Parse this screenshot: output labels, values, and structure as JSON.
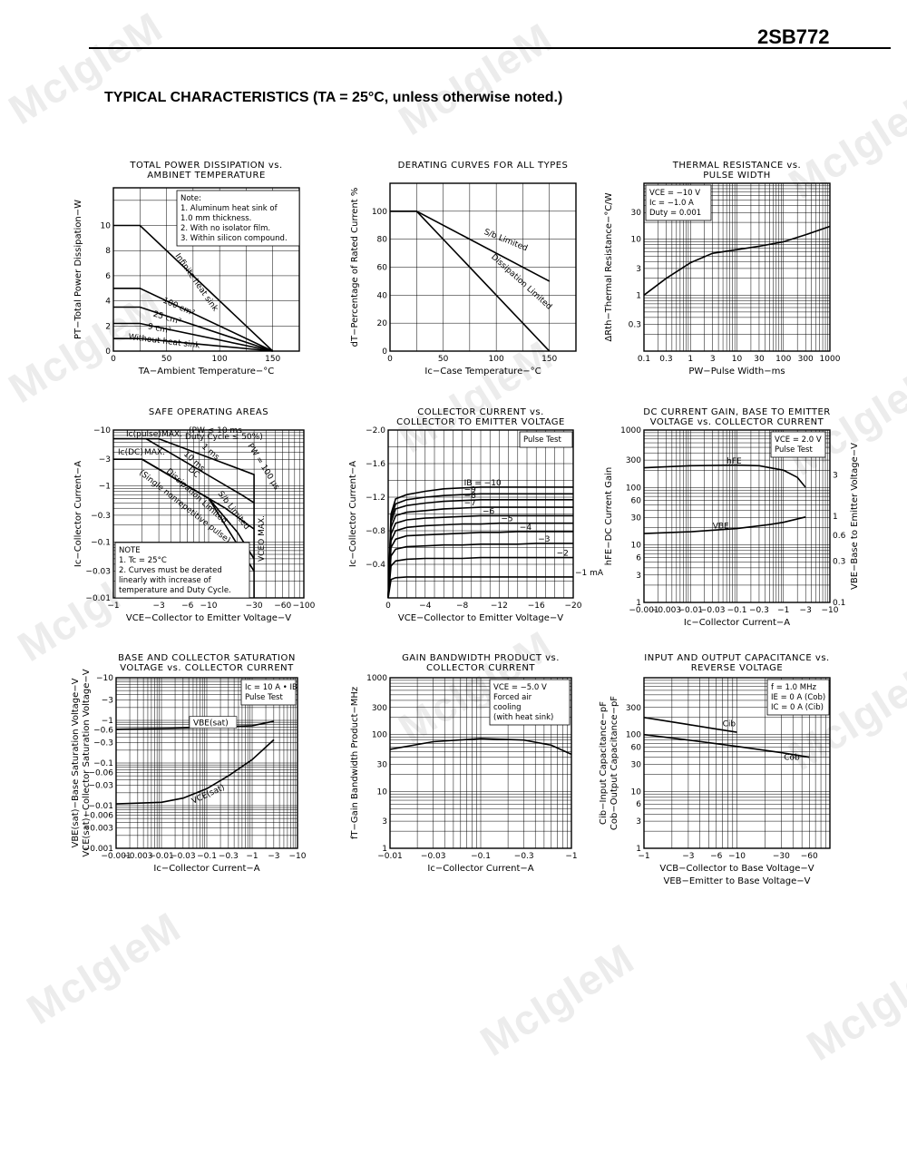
{
  "header": {
    "part_number": "2SB772",
    "section_title": "TYPICAL  CHARACTERISTICS (TA = 25°C, unless otherwise noted.)"
  },
  "watermark": "McIgIeM",
  "chart_data": [
    {
      "id": "c1",
      "type": "line",
      "title": [
        "TOTAL POWER DISSIPATION vs.",
        "AMBINET TEMPERATURE"
      ],
      "xlabel": "TA−Ambient  Temperature−°C",
      "ylabel": "PT−Total Power Dissipation−W",
      "xscale": "linear",
      "yscale": "linear",
      "xlim": [
        0,
        175
      ],
      "ylim": [
        0,
        13
      ],
      "xticks": [
        0,
        50,
        100,
        150
      ],
      "xtick_labels": [
        "0",
        "50",
        "100",
        "150"
      ],
      "yticks": [
        0,
        2,
        4,
        6,
        8,
        10
      ],
      "ytick_labels": [
        "0",
        "2",
        "4",
        "6",
        "8",
        "10"
      ],
      "x_grid": [
        0,
        25,
        50,
        75,
        100,
        125,
        150,
        175
      ],
      "y_grid": [
        0,
        2,
        4,
        6,
        8,
        10,
        12
      ],
      "series": [
        {
          "name": "Infinite heat sink",
          "x": [
            0,
            25,
            150
          ],
          "y": [
            10,
            10,
            0
          ]
        },
        {
          "name": "100 cm²",
          "x": [
            0,
            25,
            150
          ],
          "y": [
            5,
            5,
            0
          ]
        },
        {
          "name": "25 cm²",
          "x": [
            0,
            25,
            150
          ],
          "y": [
            3.5,
            3.5,
            0
          ]
        },
        {
          "name": "9 cm²",
          "x": [
            0,
            25,
            150
          ],
          "y": [
            2.2,
            2.2,
            0
          ]
        },
        {
          "name": "Without heat sink",
          "x": [
            0,
            25,
            150
          ],
          "y": [
            1,
            1,
            0
          ]
        }
      ],
      "notes": [
        "Note:",
        "1. Aluminum heat sink of",
        "    1.0 mm thickness.",
        "2. With no isolator film.",
        "3. Within silicon compound."
      ],
      "legend": "top-right"
    },
    {
      "id": "c2",
      "type": "line",
      "title": [
        "DERATING CURVES FOR ALL TYPES"
      ],
      "xlabel": "Ic−Case Temperature−°C",
      "ylabel": "dT−Percentage of Rated Current  %",
      "xscale": "linear",
      "yscale": "linear",
      "xlim": [
        0,
        175
      ],
      "ylim": [
        0,
        120
      ],
      "xticks": [
        0,
        50,
        100,
        150
      ],
      "xtick_labels": [
        "0",
        "50",
        "100",
        "150"
      ],
      "yticks": [
        0,
        20,
        40,
        60,
        80,
        100
      ],
      "ytick_labels": [
        "0",
        "20",
        "40",
        "60",
        "80",
        "100"
      ],
      "x_grid": [
        0,
        25,
        50,
        75,
        100,
        125,
        150,
        175
      ],
      "y_grid": [
        0,
        20,
        40,
        60,
        80,
        100,
        120
      ],
      "series": [
        {
          "name": "S/b Limited",
          "x": [
            0,
            25,
            150
          ],
          "y": [
            100,
            100,
            50
          ]
        },
        {
          "name": "Dissipation Limited",
          "x": [
            0,
            25,
            150
          ],
          "y": [
            100,
            100,
            0
          ]
        }
      ]
    },
    {
      "id": "c3",
      "type": "line",
      "title": [
        "THERMAL RESISTANCE vs.",
        "PULSE WIDTH"
      ],
      "xlabel": "PW−Pulse Width−ms",
      "ylabel": "ΔRth−Thermal Resistance−°C/W",
      "xscale": "log",
      "yscale": "log",
      "xlim": [
        0.1,
        1000
      ],
      "ylim": [
        0.1,
        100
      ],
      "xticks": [
        0.1,
        0.3,
        1,
        3,
        10,
        30,
        100,
        300,
        1000
      ],
      "xtick_labels": [
        "0.1",
        "0.3",
        "1",
        "3",
        "10",
        "30",
        "100",
        "300",
        "1000"
      ],
      "yticks": [
        0.3,
        1,
        3,
        10,
        30
      ],
      "ytick_labels": [
        "0.3",
        "1",
        "3",
        "10",
        "30"
      ],
      "series": [
        {
          "name": "ΔRth",
          "x": [
            0.1,
            0.3,
            1,
            3,
            10,
            30,
            100,
            300,
            1000
          ],
          "y": [
            1.0,
            2.0,
            3.8,
            5.6,
            6.5,
            7.5,
            9.0,
            12.0,
            17.0
          ]
        }
      ],
      "notes": [
        "VCE = −10 V",
        "Ic = −1.0 A",
        "Duty = 0.001"
      ]
    },
    {
      "id": "c4",
      "type": "line",
      "title": [
        "SAFE OPERATING AREAS"
      ],
      "xlabel": "VCE−Collector to Emitter Voltage−V",
      "ylabel": "Ic−Collector Current−A",
      "xscale": "log",
      "yscale": "log",
      "xlim": [
        1,
        100
      ],
      "ylim": [
        0.01,
        10
      ],
      "xticks": [
        1,
        3,
        6,
        10,
        30,
        60,
        100
      ],
      "xtick_labels": [
        "−1",
        "−3",
        "−6",
        "−10",
        "−30",
        "−60",
        "−100"
      ],
      "yticks": [
        0.01,
        0.03,
        0.1,
        0.3,
        1,
        3,
        10
      ],
      "ytick_labels": [
        "−0.01",
        "−0.03",
        "−0.1",
        "−0.3",
        "−1",
        "−3",
        "−10"
      ],
      "series": [
        {
          "name": "Ic(pulse) MAX.",
          "x": [
            1,
            3
          ],
          "y": [
            7,
            7
          ]
        },
        {
          "name": "Ic(DC) MAX.",
          "x": [
            1,
            2
          ],
          "y": [
            3,
            3
          ]
        },
        {
          "name": "PW = 100 μs",
          "x": [
            3,
            30,
            30
          ],
          "y": [
            7,
            1.6,
            0.01
          ]
        },
        {
          "name": "1 ms",
          "x": [
            2.2,
            22,
            30
          ],
          "y": [
            7,
            0.7,
            0.5
          ]
        },
        {
          "name": "10 ms",
          "x": [
            2.0,
            15,
            30
          ],
          "y": [
            3,
            0.4,
            0.17
          ]
        },
        {
          "name": "DC",
          "x": [
            2.0,
            10,
            30
          ],
          "y": [
            3,
            0.6,
            0.03
          ]
        },
        {
          "name": "Dissipation Limited / S/b Limited",
          "x": [
            2.0,
            10,
            20,
            30
          ],
          "y": [
            3,
            0.6,
            0.15,
            0.05
          ]
        }
      ],
      "annotations": [
        "Ic(pulse)",
        "MAX.",
        "(PW ≤ 10 ms",
        "Duty Cycle ≤ 50%)",
        "Ic(DC)",
        "MAX.",
        "1 ms",
        "10 ms",
        "DC",
        "Dissipation Limited",
        "S/b Limited",
        "(Single nonrepetitive pulse)",
        "PW = 100 μs",
        "VCEO MAX."
      ],
      "notes": [
        "NOTE",
        "1. Tc = 25°C",
        "2. Curves must be derated",
        "    linearly with increase of",
        "    temperature and Duty Cycle."
      ]
    },
    {
      "id": "c5",
      "type": "line",
      "title": [
        "COLLECTOR CURRENT vs.",
        "COLLECTOR TO EMITTER VOLTAGE"
      ],
      "xlabel": "VCE−Collector to Emitter Voltage−V",
      "ylabel": "Ic−Collector Current−A",
      "xscale": "linear",
      "yscale": "linear",
      "xlim": [
        0,
        20
      ],
      "ylim": [
        0,
        2.0
      ],
      "xticks": [
        0,
        4,
        8,
        12,
        16,
        20
      ],
      "xtick_labels": [
        "0",
        "−4",
        "−8",
        "−12",
        "−16",
        "−20"
      ],
      "yticks": [
        0.4,
        0.8,
        1.2,
        1.6,
        2.0
      ],
      "ytick_labels": [
        "−0.4",
        "−0.8",
        "−1.2",
        "−1.6",
        "−2.0"
      ],
      "x_grid": [
        0,
        1,
        2,
        3,
        4,
        5,
        6,
        7,
        8,
        9,
        10,
        11,
        12,
        13,
        14,
        15,
        16,
        17,
        18,
        19,
        20
      ],
      "y_grid": [
        0,
        0.2,
        0.4,
        0.6,
        0.8,
        1.0,
        1.2,
        1.4,
        1.6,
        1.8,
        2.0
      ],
      "series_points_x": [
        0,
        0.3,
        0.8,
        2,
        4,
        6,
        8,
        10,
        12,
        14,
        16,
        18,
        20
      ],
      "series": [
        {
          "name": "−1 mA",
          "y": [
            0,
            0.22,
            0.24,
            0.25,
            0.25,
            0.25,
            0.25,
            0.25,
            0.25,
            0.25,
            0.25,
            0.25,
            0.25
          ]
        },
        {
          "name": "−2",
          "y": [
            0,
            0.38,
            0.44,
            0.46,
            0.47,
            0.47,
            0.47,
            0.48,
            0.48,
            0.48,
            0.48,
            0.48,
            0.48
          ]
        },
        {
          "name": "−3",
          "y": [
            0,
            0.5,
            0.58,
            0.61,
            0.62,
            0.63,
            0.63,
            0.64,
            0.64,
            0.64,
            0.65,
            0.65,
            0.65
          ]
        },
        {
          "name": "−4",
          "y": [
            0,
            0.6,
            0.7,
            0.74,
            0.75,
            0.76,
            0.77,
            0.78,
            0.78,
            0.79,
            0.79,
            0.79,
            0.79
          ]
        },
        {
          "name": "−5",
          "y": [
            0,
            0.68,
            0.8,
            0.84,
            0.86,
            0.87,
            0.88,
            0.88,
            0.89,
            0.89,
            0.89,
            0.89,
            0.89
          ]
        },
        {
          "name": "−6",
          "y": [
            0,
            0.76,
            0.89,
            0.93,
            0.95,
            0.96,
            0.97,
            0.98,
            0.98,
            0.98,
            0.98,
            0.98,
            0.98
          ]
        },
        {
          "name": "−7",
          "y": [
            0,
            0.84,
            0.98,
            1.02,
            1.04,
            1.06,
            1.07,
            1.08,
            1.08,
            1.08,
            1.08,
            1.08,
            1.08
          ]
        },
        {
          "name": "−8",
          "y": [
            0,
            0.9,
            1.06,
            1.1,
            1.13,
            1.15,
            1.16,
            1.17,
            1.17,
            1.17,
            1.17,
            1.17,
            1.17
          ]
        },
        {
          "name": "−9",
          "y": [
            0,
            0.95,
            1.12,
            1.17,
            1.2,
            1.22,
            1.23,
            1.24,
            1.24,
            1.24,
            1.24,
            1.24,
            1.24
          ]
        },
        {
          "name": "IB = −10",
          "y": [
            0,
            1.0,
            1.18,
            1.23,
            1.27,
            1.3,
            1.31,
            1.32,
            1.32,
            1.32,
            1.32,
            1.32,
            1.32
          ]
        }
      ],
      "notes": [
        "Pulse Test"
      ]
    },
    {
      "id": "c6",
      "type": "line",
      "title": [
        "DC CURRENT GAIN, BASE TO EMITTER",
        "VOLTAGE vs. COLLECTOR CURRENT"
      ],
      "xlabel": "Ic−Collector Current−A",
      "ylabel": "hFE−DC Current Gain",
      "y2label": "VBE−Base to Emitter Voltage−V",
      "xscale": "log",
      "yscale": "log",
      "xlim": [
        0.001,
        10
      ],
      "ylim": [
        1,
        1000
      ],
      "y2lim": [
        0.1,
        10
      ],
      "xticks": [
        0.001,
        0.003,
        0.01,
        0.03,
        0.1,
        0.3,
        1,
        3,
        10
      ],
      "xtick_labels": [
        "−0.001",
        "−0.003",
        "−0.01",
        "−0.03",
        "−0.1",
        "−0.3",
        "−1",
        "−3",
        "−10"
      ],
      "yticks": [
        1,
        3,
        6,
        10,
        30,
        60,
        100,
        300,
        1000
      ],
      "ytick_labels": [
        "1",
        "3",
        "6",
        "10",
        "30",
        "60",
        "100",
        "300",
        "1000"
      ],
      "y2ticks": [
        0.1,
        0.3,
        0.6,
        1,
        3
      ],
      "y2tick_labels": [
        "0.1",
        "0.3",
        "0.6",
        "1",
        "3"
      ],
      "series": [
        {
          "name": "hFE",
          "axis": "left",
          "x": [
            0.001,
            0.01,
            0.1,
            0.3,
            1,
            2,
            3
          ],
          "y": [
            220,
            240,
            245,
            240,
            200,
            150,
            100
          ]
        },
        {
          "name": "VBE",
          "axis": "right",
          "x": [
            0.001,
            0.01,
            0.1,
            0.5,
            1,
            3
          ],
          "y": [
            0.63,
            0.66,
            0.72,
            0.8,
            0.85,
            0.98
          ]
        }
      ],
      "notes": [
        "VCE = 2.0 V",
        "Pulse Test"
      ]
    },
    {
      "id": "c7",
      "type": "line",
      "title": [
        "BASE AND COLLECTOR SATURATION",
        "VOLTAGE vs. COLLECTOR CURRENT"
      ],
      "xlabel": "Ic−Collector Current−A",
      "ylabel": "VBE(sat)−Base Saturation Voltage−V\nVCE(sat)−Collector Saturation Voltage−V",
      "xscale": "log",
      "yscale": "log",
      "xlim": [
        0.001,
        10
      ],
      "ylim": [
        0.001,
        10
      ],
      "xticks": [
        0.001,
        0.003,
        0.01,
        0.03,
        0.1,
        0.3,
        1,
        3,
        10
      ],
      "xtick_labels": [
        "−0.001",
        "−0.003",
        "−0.01",
        "−0.03",
        "−0.1",
        "−0.3",
        "−1",
        "−3",
        "−10"
      ],
      "yticks": [
        0.001,
        0.003,
        0.006,
        0.01,
        0.03,
        0.06,
        0.1,
        0.3,
        0.6,
        1,
        3,
        10
      ],
      "ytick_labels": [
        "−0.001",
        "−0.003",
        "−0.006",
        "−0.01",
        "−0.03",
        "−0.06",
        "−0.1",
        "−0.3",
        "−0.6",
        "−1",
        "−3",
        "−10"
      ],
      "series": [
        {
          "name": "VBE(sat)",
          "x": [
            0.001,
            0.01,
            0.1,
            1,
            3
          ],
          "y": [
            0.62,
            0.64,
            0.68,
            0.75,
            0.95
          ]
        },
        {
          "name": "VCE(sat)",
          "x": [
            0.001,
            0.01,
            0.03,
            0.1,
            0.3,
            1,
            3
          ],
          "y": [
            0.011,
            0.012,
            0.015,
            0.025,
            0.05,
            0.12,
            0.35
          ]
        }
      ],
      "notes": [
        "Ic = 10 A • IB",
        "Pulse Test"
      ]
    },
    {
      "id": "c8",
      "type": "line",
      "title": [
        "GAIN BANDWIDTH PRODUCT vs.",
        "COLLECTOR CURRENT"
      ],
      "xlabel": "Ic−Collector Current−A",
      "ylabel": "fT−Gain Bandwidth Product−MHz",
      "xscale": "log",
      "yscale": "log",
      "xlim": [
        0.01,
        1
      ],
      "ylim": [
        1,
        1000
      ],
      "xticks": [
        0.01,
        0.03,
        0.1,
        0.3,
        1
      ],
      "xtick_labels": [
        "−0.01",
        "−0.03",
        "−0.1",
        "−0.3",
        "−1"
      ],
      "yticks": [
        1,
        3,
        10,
        30,
        100,
        300,
        1000
      ],
      "ytick_labels": [
        "1",
        "3",
        "10",
        "30",
        "100",
        "300",
        "1000"
      ],
      "series": [
        {
          "name": "fT",
          "x": [
            0.01,
            0.03,
            0.1,
            0.3,
            0.6,
            1
          ],
          "y": [
            55,
            75,
            85,
            80,
            65,
            45
          ]
        }
      ],
      "notes": [
        "VCE = −5.0 V",
        "Forced air",
        "cooling",
        "(with heat sink)"
      ]
    },
    {
      "id": "c9",
      "type": "line",
      "title": [
        "INPUT AND OUTPUT CAPACITANCE vs.",
        "REVERSE VOLTAGE"
      ],
      "xlabel": "VCB−Collector to Base Voltage−V",
      "xlabel2": "VEB−Emitter to Base Voltage−V",
      "ylabel": "Cib−Input Capacitance−pF\nCob−Output Capacitance−pF",
      "xscale": "log",
      "yscale": "log",
      "xlim": [
        1,
        100
      ],
      "ylim": [
        1,
        1000
      ],
      "xticks": [
        1,
        3,
        6,
        10,
        30,
        60
      ],
      "xtick_labels": [
        "−1",
        "−3",
        "−6",
        "−10",
        "−30",
        "−60"
      ],
      "yticks": [
        1,
        3,
        6,
        10,
        30,
        60,
        100,
        300
      ],
      "ytick_labels": [
        "1",
        "3",
        "6",
        "10",
        "30",
        "60",
        "100",
        "300"
      ],
      "series": [
        {
          "name": "Cib",
          "x": [
            1,
            3,
            6,
            10
          ],
          "y": [
            200,
            150,
            125,
            110
          ]
        },
        {
          "name": "Cob",
          "x": [
            1,
            3,
            10,
            30,
            60
          ],
          "y": [
            100,
            80,
            62,
            48,
            40
          ]
        }
      ],
      "notes": [
        "f = 1.0 MHz",
        "IE = 0 A (Cob)",
        "IC = 0 A (Cib)"
      ]
    }
  ]
}
